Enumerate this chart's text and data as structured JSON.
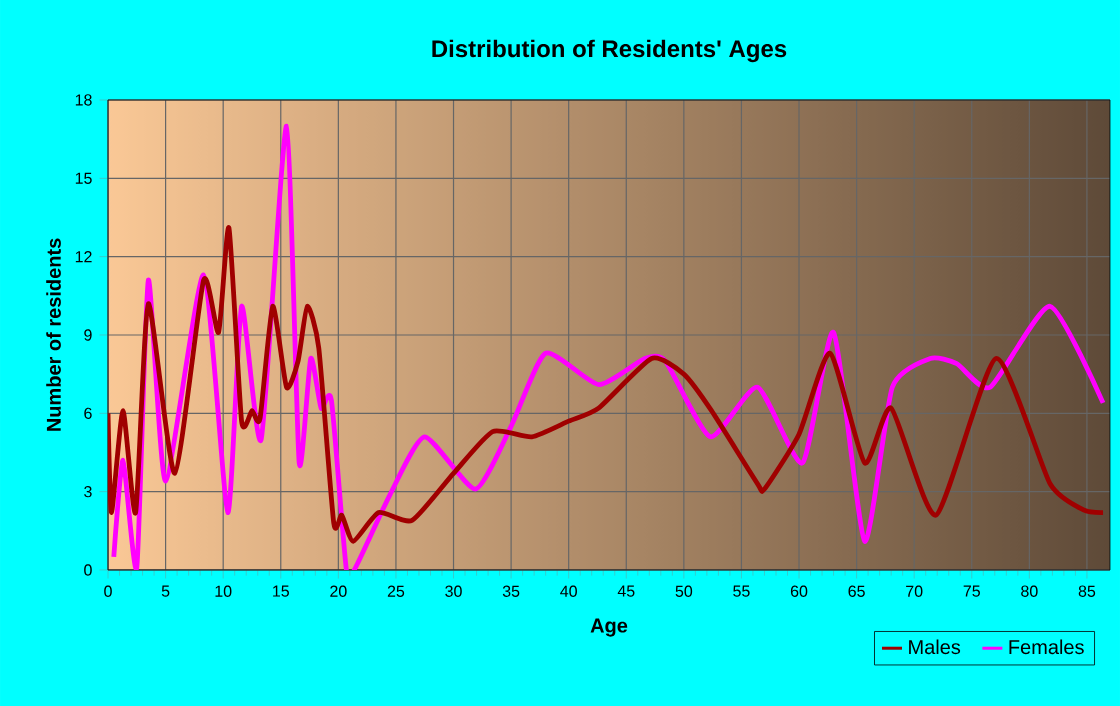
{
  "chart_data": {
    "type": "line",
    "title": "Distribution of Residents' Ages",
    "xlabel": "Age",
    "ylabel": "Number of residents",
    "xlim": [
      0,
      87
    ],
    "ylim": [
      0,
      18
    ],
    "xticks": [
      0,
      5,
      10,
      15,
      20,
      25,
      30,
      35,
      40,
      45,
      50,
      55,
      60,
      65,
      70,
      75,
      80,
      85
    ],
    "yticks": [
      0,
      3,
      6,
      9,
      12,
      15,
      18
    ],
    "grid": true,
    "legend": "bottom right",
    "marker": "none",
    "line_style": "solid",
    "series": [
      {
        "name": "Males",
        "color": "#a00000",
        "x": [
          0,
          0.3,
          1.3,
          2.4,
          3.5,
          5.8,
          8.3,
          9.6,
          10.5,
          11.6,
          12.5,
          13.2,
          14.3,
          15.5,
          16.5,
          17.3,
          18.3,
          19.6,
          20.3,
          21.3,
          23.5,
          26.4,
          30,
          33.4,
          36.8,
          40,
          42.6,
          47.2,
          50,
          52.4,
          56.4,
          57,
          60,
          62.7,
          65.7,
          68,
          71.9,
          77.1,
          81.8,
          84.7,
          86.4
        ],
        "values": [
          6,
          2.2,
          6.1,
          2.2,
          10.2,
          3.7,
          11.1,
          9.1,
          13.1,
          5.7,
          6.1,
          5.8,
          10.1,
          7,
          8,
          10.1,
          8.5,
          1.8,
          2.1,
          1.1,
          2.2,
          1.9,
          3.7,
          5.3,
          5.1,
          5.7,
          6.2,
          8.1,
          7.5,
          6.1,
          3.3,
          3.1,
          5.2,
          8.3,
          4.1,
          6.2,
          2.1,
          8.1,
          3.3,
          2.3,
          2.2
        ]
      },
      {
        "name": "Females",
        "color": "#ff00ff",
        "x": [
          0.5,
          1.3,
          2.5,
          3.5,
          5,
          8.3,
          10.4,
          11.6,
          13.3,
          15.5,
          16.6,
          17.6,
          18.5,
          19.4,
          20.7,
          21.5,
          24.5,
          27.5,
          31.9,
          35,
          38,
          42.6,
          46.6,
          48.4,
          52.3,
          56.4,
          60.3,
          63,
          65.7,
          68.1,
          71.4,
          73.7,
          76.6,
          81.8,
          86.4
        ],
        "values": [
          0.5,
          4.2,
          0.1,
          11.1,
          3.4,
          11.3,
          2.2,
          10.1,
          5,
          17,
          4.1,
          8.1,
          6.2,
          6.5,
          0,
          0.1,
          2.9,
          5.1,
          3.1,
          5.5,
          8.3,
          7.1,
          8.1,
          8,
          5.1,
          7,
          4.1,
          9.1,
          1.1,
          7,
          8.1,
          7.9,
          7,
          10.1,
          6.4
        ]
      }
    ]
  }
}
